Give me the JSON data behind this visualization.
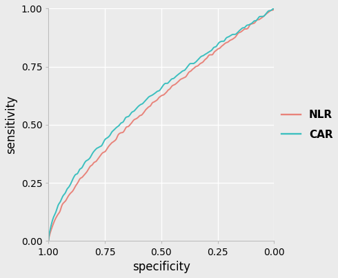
{
  "title": "",
  "xlabel": "specificity",
  "ylabel": "sensitivity",
  "xlim": [
    1.0,
    0.0
  ],
  "ylim": [
    0.0,
    1.0
  ],
  "xticks": [
    1.0,
    0.75,
    0.5,
    0.25,
    0.0
  ],
  "yticks": [
    0.0,
    0.25,
    0.5,
    0.75,
    1.0
  ],
  "nlr_color": "#E8837A",
  "car_color": "#3BBFBF",
  "background_color": "#EBEBEB",
  "grid_color": "#FFFFFF",
  "legend_labels": [
    "NLR",
    "CAR"
  ],
  "legend_fontsize": 11,
  "axis_label_fontsize": 12,
  "tick_fontsize": 10,
  "line_width": 1.4,
  "n_points": 400,
  "nlr_auc": 0.595,
  "car_auc": 0.625,
  "noise_std": 0.008,
  "seed_nlr": 10,
  "seed_car": 20
}
